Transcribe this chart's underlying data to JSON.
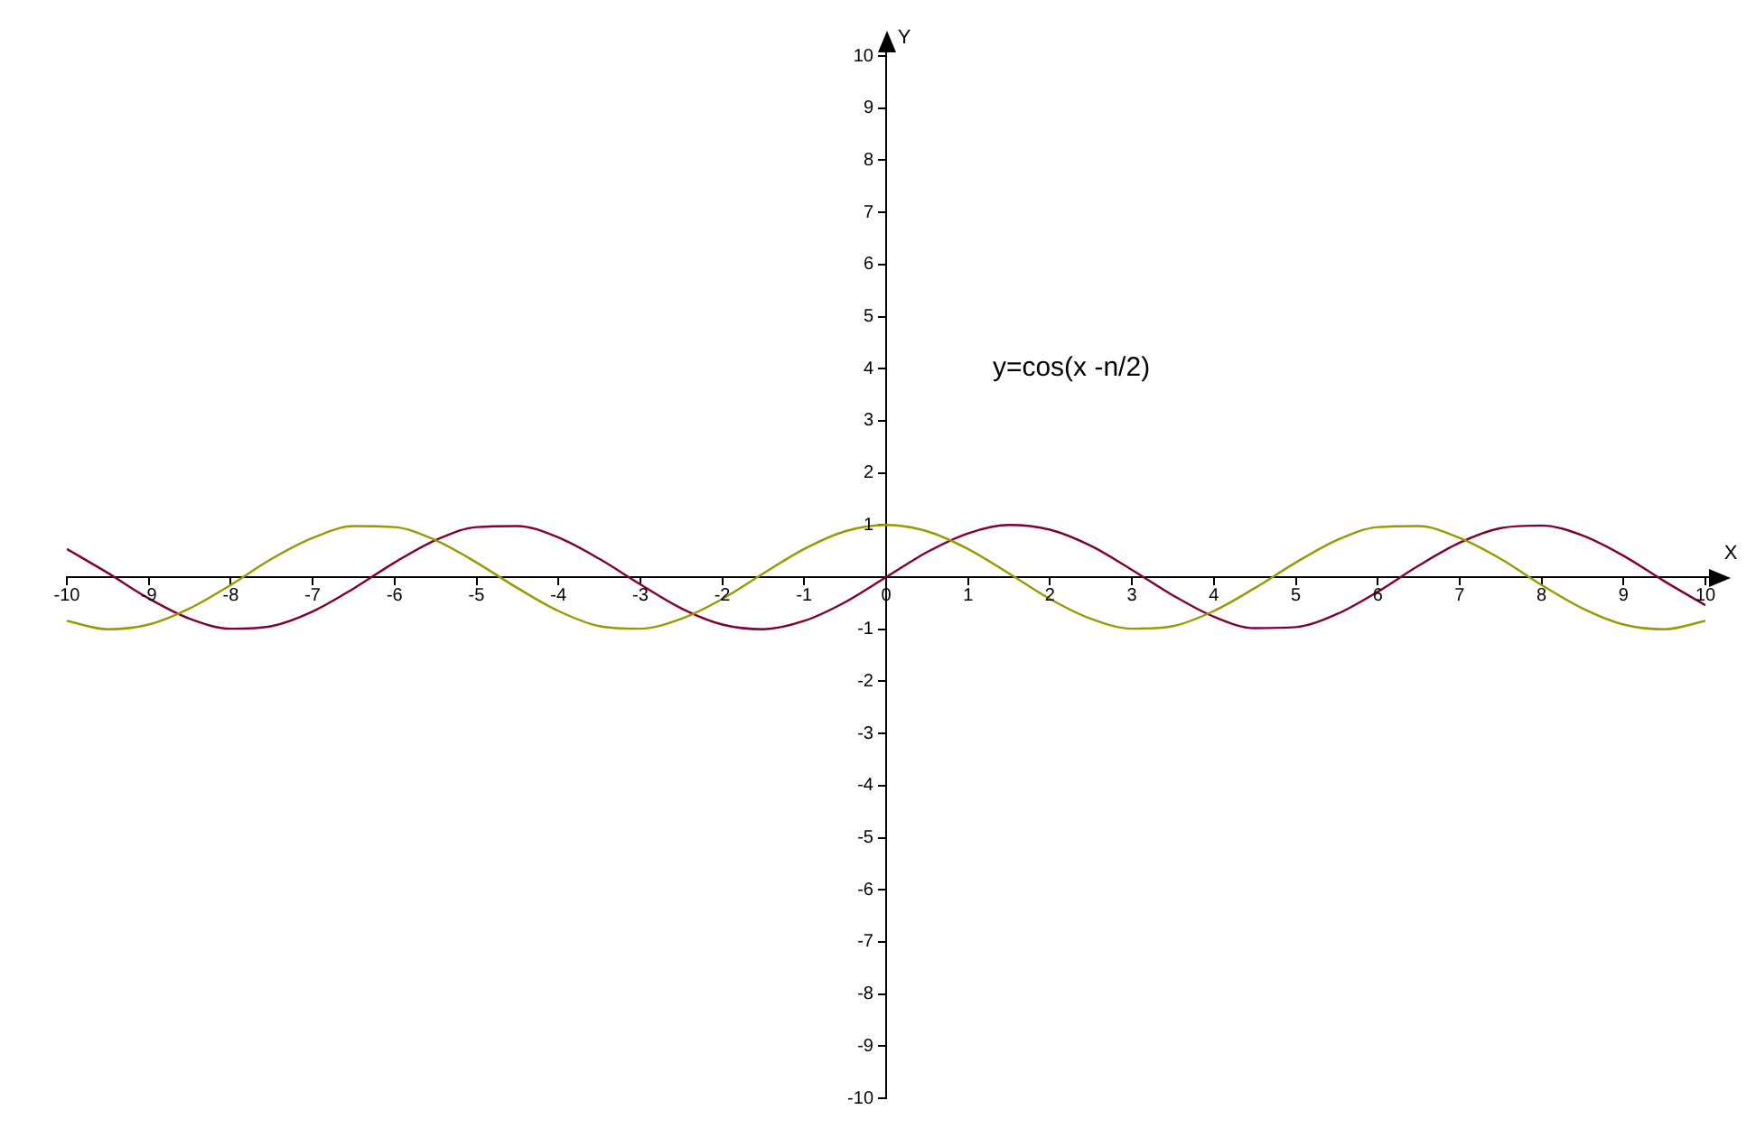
{
  "chart_data": {
    "type": "line",
    "xlabel": "X",
    "ylabel": "Y",
    "annotations": [
      "y=cos(x -n/2)"
    ],
    "x": [
      -10,
      -9.5,
      -9,
      -8.5,
      -8,
      -7.5,
      -7,
      -6.5,
      -6,
      -5.5,
      -5,
      -4.5,
      -4,
      -3.5,
      -3,
      -2.5,
      -2,
      -1.5,
      -1,
      -0.5,
      0,
      0.5,
      1,
      1.5,
      2,
      2.5,
      3,
      3.5,
      4,
      4.5,
      5,
      5.5,
      6,
      6.5,
      7,
      7.5,
      8,
      8.5,
      9,
      9.5,
      10
    ],
    "series": [
      {
        "color": "#999900",
        "values": [
          -0.84,
          -1.0,
          -0.91,
          -0.6,
          -0.15,
          0.35,
          0.75,
          0.98,
          0.96,
          0.71,
          0.28,
          -0.21,
          -0.65,
          -0.94,
          -0.99,
          -0.8,
          -0.42,
          0.07,
          0.54,
          0.88,
          1,
          0.88,
          0.54,
          0.07,
          -0.42,
          -0.8,
          -0.99,
          -0.94,
          -0.65,
          -0.21,
          0.28,
          0.71,
          0.96,
          0.98,
          0.75,
          0.35,
          -0.15,
          -0.6,
          -0.91,
          -1.0,
          -0.84
        ]
      },
      {
        "color": "#800033",
        "values": [
          0.54,
          0.08,
          -0.41,
          -0.8,
          -0.99,
          -0.94,
          -0.66,
          -0.22,
          0.28,
          0.71,
          0.96,
          0.98,
          0.76,
          0.35,
          -0.14,
          -0.6,
          -0.91,
          -1.0,
          -0.84,
          -0.48,
          0,
          0.48,
          0.84,
          1.0,
          0.91,
          0.6,
          0.14,
          -0.35,
          -0.76,
          -0.98,
          -0.96,
          -0.71,
          -0.28,
          0.22,
          0.66,
          0.94,
          0.99,
          0.8,
          0.41,
          -0.08,
          -0.54
        ]
      }
    ],
    "xlim": [
      -10,
      10
    ],
    "ylim": [
      -10,
      10
    ],
    "xticks": [
      -10,
      -9,
      -8,
      -7,
      -6,
      -5,
      -4,
      -3,
      -2,
      -1,
      0,
      1,
      2,
      3,
      4,
      5,
      6,
      7,
      8,
      9,
      10
    ],
    "yticks": [
      -10,
      -9,
      -8,
      -7,
      -6,
      -5,
      -4,
      -3,
      -2,
      -1,
      {
        "value": 0,
        "label": null
      },
      1,
      2,
      3,
      4,
      5,
      6,
      7,
      8,
      9,
      10
    ],
    "grid": false,
    "legend": false,
    "marker": "none",
    "line_style": "solid"
  }
}
